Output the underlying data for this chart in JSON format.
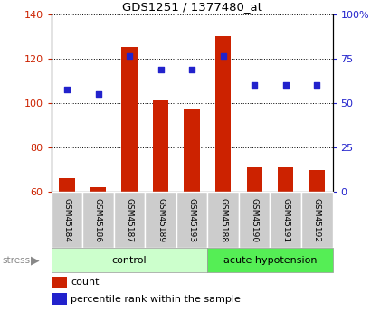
{
  "title": "GDS1251 / 1377480_at",
  "samples": [
    "GSM45184",
    "GSM45186",
    "GSM45187",
    "GSM45189",
    "GSM45193",
    "GSM45188",
    "GSM45190",
    "GSM45191",
    "GSM45192"
  ],
  "count_values": [
    66,
    62,
    125,
    101,
    97,
    130,
    71,
    71,
    70
  ],
  "percentile_values": [
    106,
    104,
    121,
    115,
    115,
    121,
    108,
    108,
    108
  ],
  "ylim_left": [
    60,
    140
  ],
  "ylim_right": [
    0,
    100
  ],
  "yticks_left": [
    60,
    80,
    100,
    120,
    140
  ],
  "yticks_right": [
    0,
    25,
    50,
    75,
    100
  ],
  "ytick_labels_right": [
    "0",
    "25",
    "50",
    "75",
    "100%"
  ],
  "bar_color": "#cc2200",
  "dot_color": "#2222cc",
  "control_label": "control",
  "acute_label": "acute hypotension",
  "stress_label": "stress",
  "legend_count": "count",
  "legend_percentile": "percentile rank within the sample",
  "left_axis_color": "#cc2200",
  "right_axis_color": "#2222cc",
  "bg_xlabels": "#cccccc",
  "bg_control": "#ccffcc",
  "bg_acute": "#55ee55",
  "bar_width": 0.5,
  "n_control": 5,
  "n_acute": 4
}
